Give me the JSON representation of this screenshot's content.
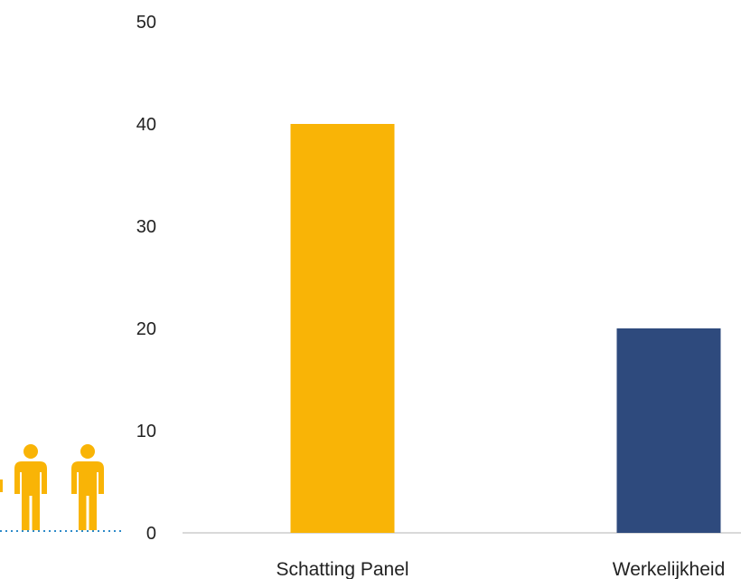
{
  "chart_data": {
    "type": "bar",
    "categories": [
      "Schatting Panel",
      "Werkelijkheid"
    ],
    "values": [
      40,
      20
    ],
    "colors": [
      "#F9B406",
      "#2E4A7D"
    ],
    "ylim": [
      0,
      50
    ],
    "yticks": [
      0,
      10,
      20,
      30,
      40,
      50
    ],
    "grid": false
  },
  "decoration": {
    "person_icon_color": "#F9B406",
    "dotted_line_color": "#2E8BC9",
    "icon": "person-icon"
  }
}
